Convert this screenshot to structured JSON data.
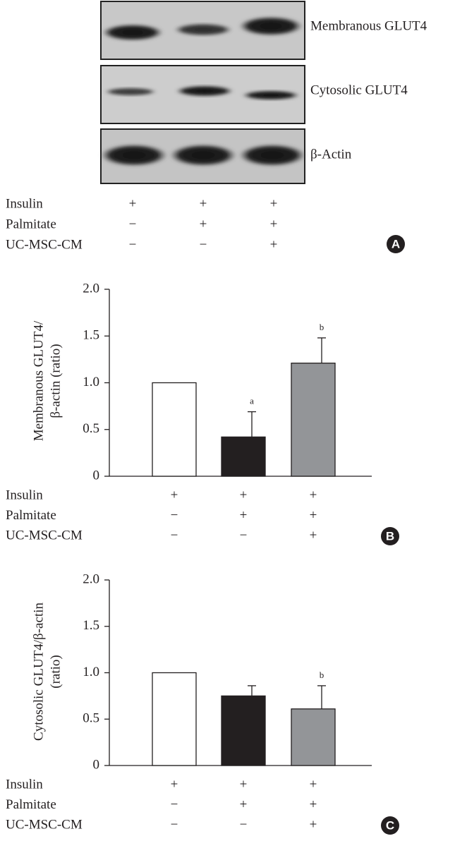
{
  "panel_a": {
    "label": "A",
    "blots": [
      "Membranous GLUT4",
      "Cytosolic GLUT4",
      "β-Actin"
    ],
    "conditions": [
      {
        "name": "Insulin",
        "values": [
          "+",
          "+",
          "+"
        ]
      },
      {
        "name": "Palmitate",
        "values": [
          "−",
          "+",
          "+"
        ]
      },
      {
        "name": "UC-MSC-CM",
        "values": [
          "−",
          "−",
          "+"
        ]
      }
    ]
  },
  "chart_data": [
    {
      "type": "bar",
      "label": "B",
      "ylabel": [
        "Membranous GLUT4/",
        "β-actin (ratio)"
      ],
      "values": [
        1.0,
        0.42,
        1.21
      ],
      "errors": [
        null,
        0.27,
        0.27
      ],
      "annotations": [
        null,
        "a",
        "b"
      ],
      "colors": [
        "#ffffff",
        "#231f20",
        "#939598"
      ],
      "ylim": [
        0,
        2
      ],
      "yticks": [
        0,
        {
          "value": 0.5,
          "label": "0.5"
        },
        {
          "value": 1,
          "label": "1.0"
        },
        {
          "value": 1.5,
          "label": "1.5"
        },
        {
          "value": 2,
          "label": "2.0"
        }
      ],
      "conditions": [
        {
          "name": "Insulin",
          "values": [
            "+",
            "+",
            "+"
          ]
        },
        {
          "name": "Palmitate",
          "values": [
            "−",
            "+",
            "+"
          ]
        },
        {
          "name": "UC-MSC-CM",
          "values": [
            "−",
            "−",
            "+"
          ]
        }
      ]
    },
    {
      "type": "bar",
      "label": "C",
      "ylabel": [
        "Cytosolic GLUT4/β-actin",
        "(ratio)"
      ],
      "values": [
        1.0,
        0.75,
        0.61
      ],
      "errors": [
        null,
        0.11,
        0.25
      ],
      "annotations": [
        null,
        null,
        "b"
      ],
      "colors": [
        "#ffffff",
        "#231f20",
        "#939598"
      ],
      "ylim": [
        0,
        2
      ],
      "yticks": [
        0,
        {
          "value": 0.5,
          "label": "0.5"
        },
        {
          "value": 1,
          "label": "1.0"
        },
        {
          "value": 1.5,
          "label": "1.5"
        },
        {
          "value": 2,
          "label": "2.0"
        }
      ],
      "conditions": [
        {
          "name": "Insulin",
          "values": [
            "+",
            "+",
            "+"
          ]
        },
        {
          "name": "Palmitate",
          "values": [
            "−",
            "+",
            "+"
          ]
        },
        {
          "name": "UC-MSC-CM",
          "values": [
            "−",
            "−",
            "+"
          ]
        }
      ]
    }
  ]
}
